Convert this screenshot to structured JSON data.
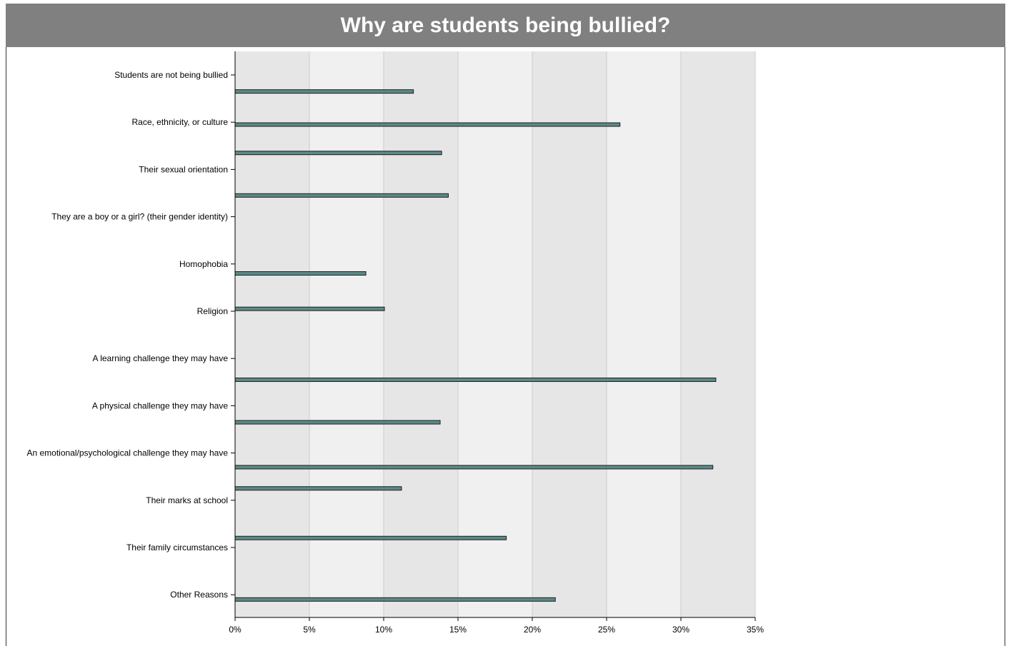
{
  "chart_data": {
    "type": "bar",
    "title": "Why are students being bullied?",
    "categories": [
      "Students are not being bullied",
      "Race, ethnicity, or culture",
      "Their sexual orientation",
      "They are a boy or a girl? (their gender identity)",
      "Homophobia",
      "Religion",
      "A learning challenge they may have",
      "A physical challenge they may have",
      "An emotional/psychological challenge they may have",
      "Their marks at school",
      "Their family circumstances",
      "Other Reasons"
    ],
    "bars": [
      {
        "value": 12.0,
        "y": 0.35
      },
      {
        "value": 25.9,
        "y": 1.05
      },
      {
        "value": 13.9,
        "y": 1.65
      },
      {
        "value": 14.35,
        "y": 2.55
      },
      {
        "value": 8.8,
        "y": 4.2
      },
      {
        "value": 10.05,
        "y": 4.95
      },
      {
        "value": 32.35,
        "y": 6.45
      },
      {
        "value": 13.8,
        "y": 7.35
      },
      {
        "value": 32.15,
        "y": 8.3
      },
      {
        "value": 11.2,
        "y": 8.75
      },
      {
        "value": 18.25,
        "y": 9.8
      },
      {
        "value": 21.55,
        "y": 11.1
      }
    ],
    "xlim": [
      0,
      35
    ],
    "xticks": [
      "0%",
      "5%",
      "10%",
      "15%",
      "20%",
      "25%",
      "30%",
      "35%"
    ],
    "xlabel": "",
    "ylabel": "",
    "grid": true,
    "bar_color": "#5a8a87",
    "band_colors": [
      "#e6e6e6",
      "#f0f0f0"
    ]
  }
}
